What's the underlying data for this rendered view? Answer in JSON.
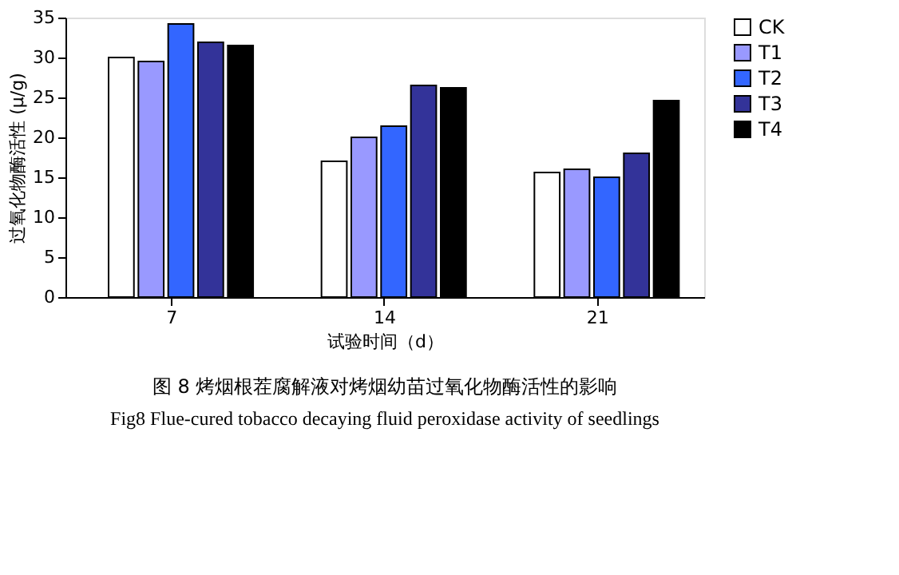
{
  "chart_data": {
    "type": "bar",
    "title": "图 8 烤烟根茬腐解液对烤烟幼苗过氧化物酶活性的影响",
    "subtitle": "Fig8    Flue-cured tobacco decaying fluid peroxidase activity of seedlings",
    "xlabel": "试验时间（d）",
    "ylabel": "过氧化物酶活性 (μ/g)",
    "categories": [
      "7",
      "14",
      "21"
    ],
    "series": [
      {
        "name": "CK",
        "color": "#ffffff",
        "values": [
          30.0,
          17.0,
          15.6
        ]
      },
      {
        "name": "T1",
        "color": "#9999ff",
        "values": [
          29.5,
          20.0,
          16.0
        ]
      },
      {
        "name": "T2",
        "color": "#3366ff",
        "values": [
          34.2,
          21.4,
          15.0
        ]
      },
      {
        "name": "T3",
        "color": "#333399",
        "values": [
          31.9,
          26.5,
          18.0
        ]
      },
      {
        "name": "T4",
        "color": "#000000",
        "values": [
          31.5,
          26.2,
          24.6
        ]
      }
    ],
    "ylim": [
      0,
      35
    ],
    "yticks": [
      0,
      5,
      10,
      15,
      20,
      25,
      30,
      35
    ],
    "grid": false,
    "legend": "right"
  }
}
